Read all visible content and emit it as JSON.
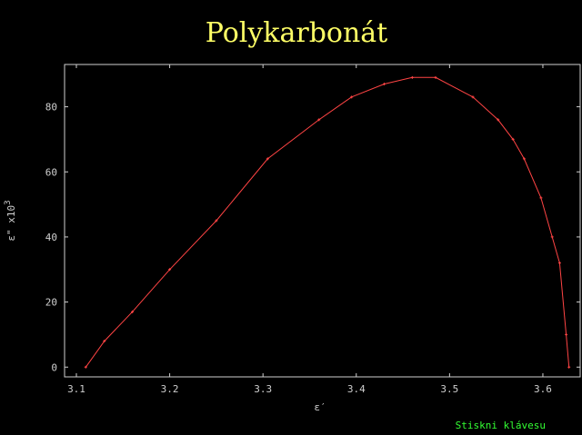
{
  "chart_data": {
    "type": "line",
    "title": "Polykarbonát",
    "xlabel": "ε′",
    "ylabel_main": "ε\" x10",
    "ylabel_exp": "3",
    "xlim": [
      3.1,
      3.64
    ],
    "ylim": [
      -3,
      93
    ],
    "xticks": [
      3.1,
      3.2,
      3.3,
      3.4,
      3.5,
      3.6
    ],
    "xtick_labels": [
      "3.1",
      "3.2",
      "3.3",
      "3.4",
      "3.5",
      "3.6"
    ],
    "yticks": [
      0,
      20,
      40,
      60,
      80
    ],
    "ytick_labels": [
      "0",
      "20",
      "40",
      "60",
      "80"
    ],
    "line_color": "#ff4444",
    "axis_color": "#cfcfcf",
    "series": [
      {
        "name": "Polykarbonát",
        "x": [
          3.11,
          3.13,
          3.16,
          3.2,
          3.25,
          3.305,
          3.36,
          3.395,
          3.43,
          3.46,
          3.485,
          3.525,
          3.552,
          3.568,
          3.58,
          3.598,
          3.61,
          3.618,
          3.625,
          3.628
        ],
        "y": [
          0,
          8,
          17,
          30,
          45,
          64,
          76,
          83,
          87,
          89,
          89,
          83,
          76,
          70,
          64,
          52,
          40,
          32,
          10,
          0
        ]
      }
    ]
  },
  "footer": {
    "text": "Stiskni klávesu"
  }
}
